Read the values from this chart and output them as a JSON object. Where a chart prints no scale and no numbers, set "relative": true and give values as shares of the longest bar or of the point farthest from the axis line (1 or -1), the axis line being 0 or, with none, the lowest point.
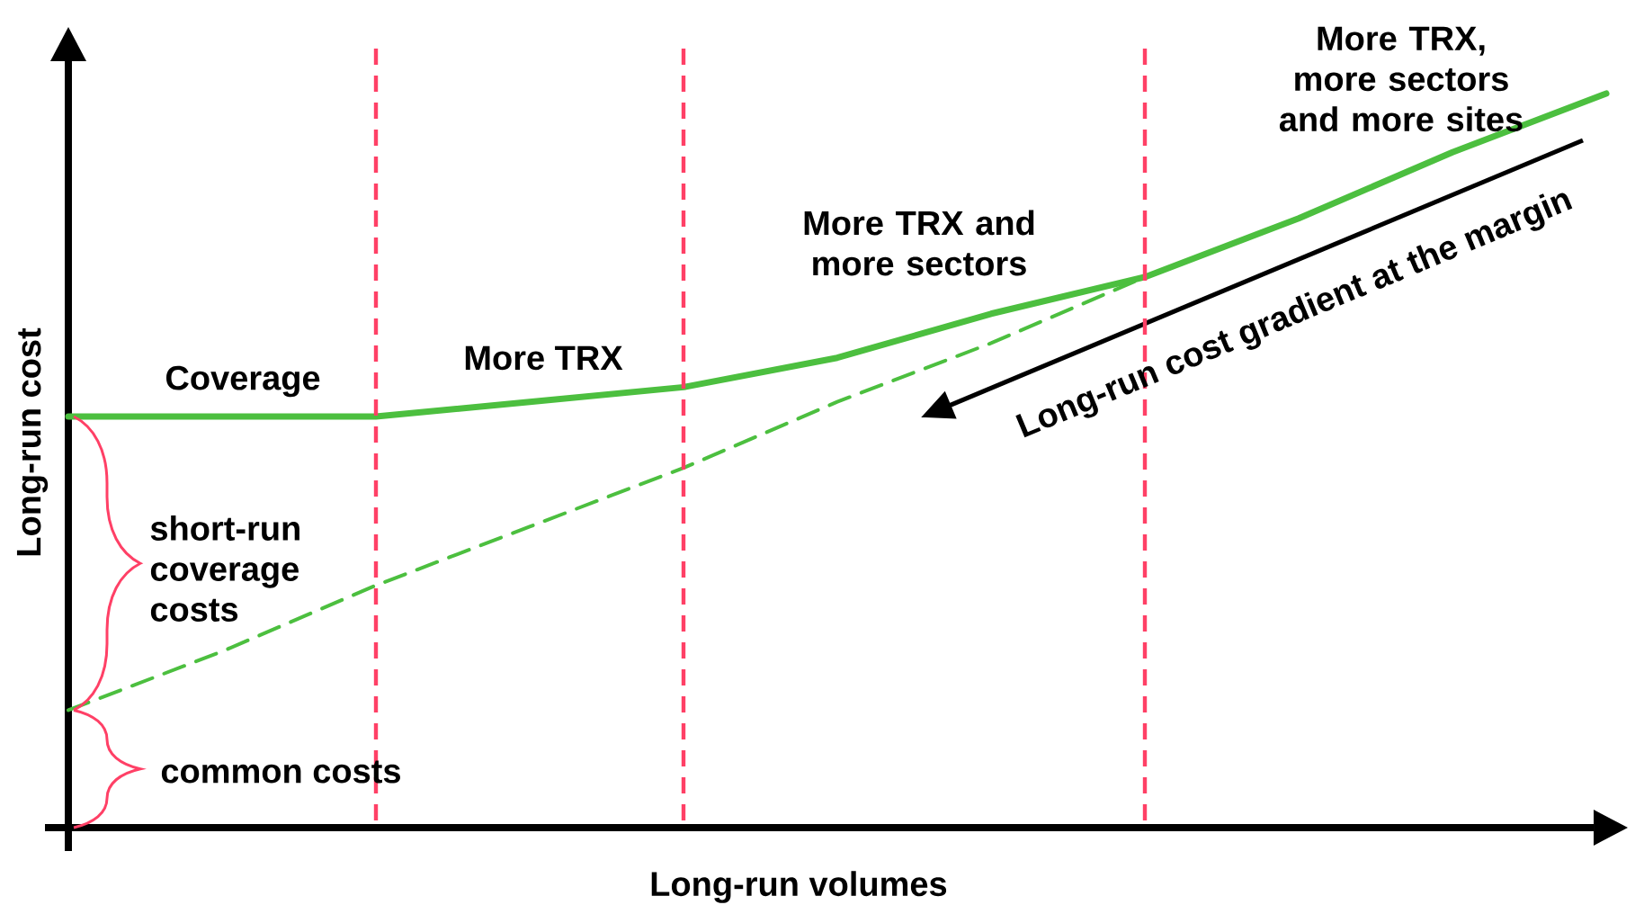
{
  "chart_data": {
    "type": "line",
    "relative": true,
    "xlabel": "Long-run volumes",
    "ylabel": "Long-run cost",
    "tick_labels": false,
    "categories": [
      null,
      null,
      null,
      null,
      null,
      null,
      null,
      null,
      null,
      null,
      null
    ],
    "series": [
      {
        "color": "#4cbf3f",
        "line_style": "solid",
        "values": [
          0.56,
          0.56,
          0.56,
          0.58,
          0.6,
          0.64,
          0.7,
          0.75,
          0.83,
          0.92,
          1.0
        ]
      },
      {
        "color": "#4cbf3f",
        "line_style": "dashed",
        "values": [
          0.16,
          0.24,
          0.33,
          0.41,
          0.49,
          0.58,
          0.66,
          0.75,
          null,
          null,
          null
        ]
      }
    ],
    "annotations": [
      "Coverage",
      "More TRX",
      "More TRX and more sectors",
      "More TRX, more sectors and more sites",
      "short-run coverage costs",
      "common costs",
      "Long-run cost gradient at the margin"
    ]
  }
}
